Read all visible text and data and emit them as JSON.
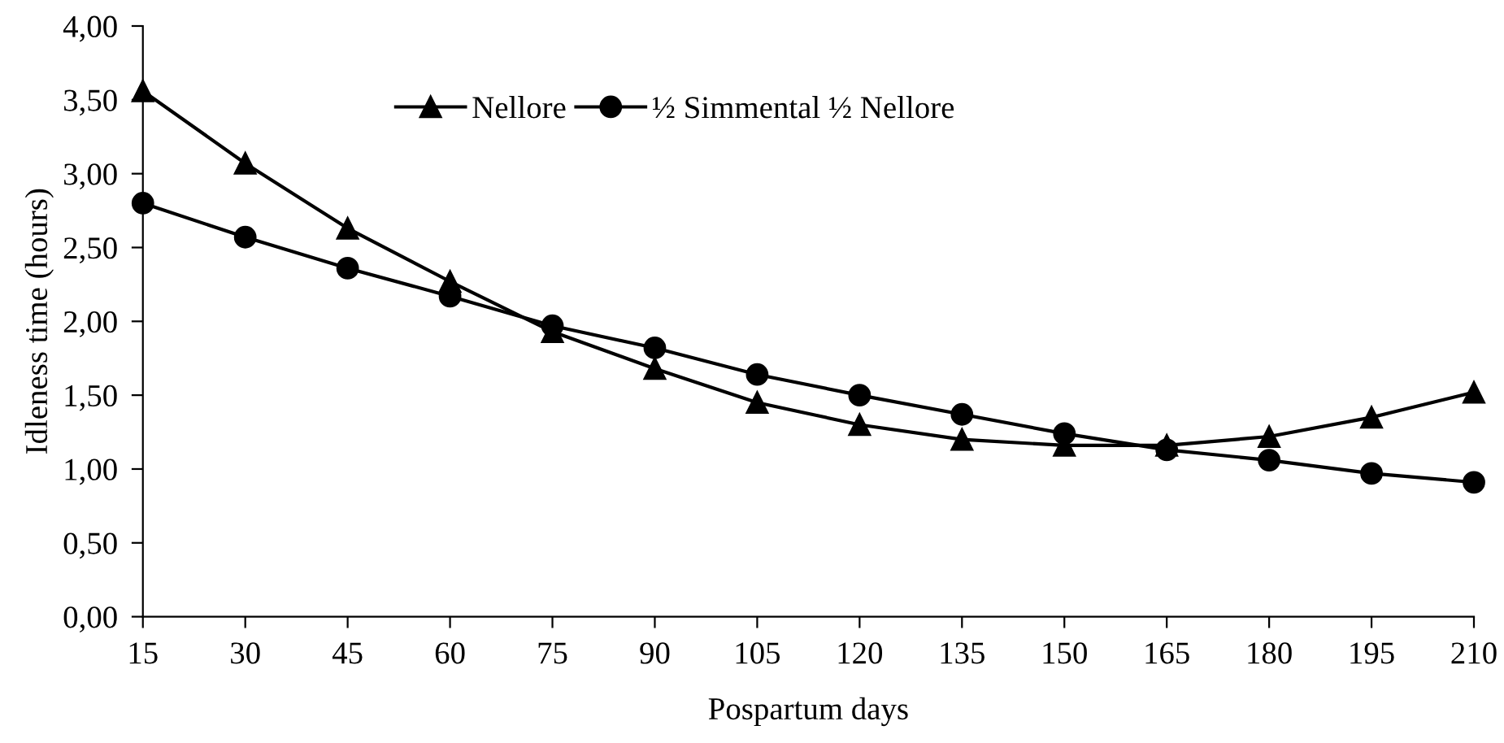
{
  "chart_data": {
    "type": "line",
    "xlabel": "Pospartum days",
    "ylabel": "Idleness time (hours)",
    "x": [
      15,
      30,
      45,
      60,
      75,
      90,
      105,
      120,
      135,
      150,
      165,
      180,
      195,
      210
    ],
    "xlim": [
      15,
      210
    ],
    "xticks": [
      15,
      30,
      45,
      60,
      75,
      90,
      105,
      120,
      135,
      150,
      165,
      180,
      195,
      210
    ],
    "ylim": [
      0,
      4
    ],
    "yticks": [
      {
        "value": 0,
        "label": "0,00"
      },
      {
        "value": 0.5,
        "label": "0,50"
      },
      {
        "value": 1,
        "label": "1,00"
      },
      {
        "value": 1.5,
        "label": "1,50"
      },
      {
        "value": 2,
        "label": "2,00"
      },
      {
        "value": 2.5,
        "label": "2,50"
      },
      {
        "value": 3,
        "label": "3,00"
      },
      {
        "value": 3.5,
        "label": "3,50"
      },
      {
        "value": 4,
        "label": "4,00"
      }
    ],
    "grid": false,
    "legend": "top",
    "line_style": "solid",
    "series": [
      {
        "name": "Nellore",
        "color": "#000000",
        "marker": "triangle",
        "values": [
          3.56,
          3.07,
          2.63,
          2.27,
          1.93,
          1.68,
          1.45,
          1.3,
          1.2,
          1.16,
          1.16,
          1.22,
          1.35,
          1.52
        ]
      },
      {
        "name": "½ Simmental ½ Nellore",
        "color": "#000000",
        "marker": "circle",
        "values": [
          2.8,
          2.57,
          2.36,
          2.17,
          1.97,
          1.82,
          1.64,
          1.5,
          1.37,
          1.24,
          1.13,
          1.06,
          0.97,
          0.91
        ]
      }
    ]
  }
}
